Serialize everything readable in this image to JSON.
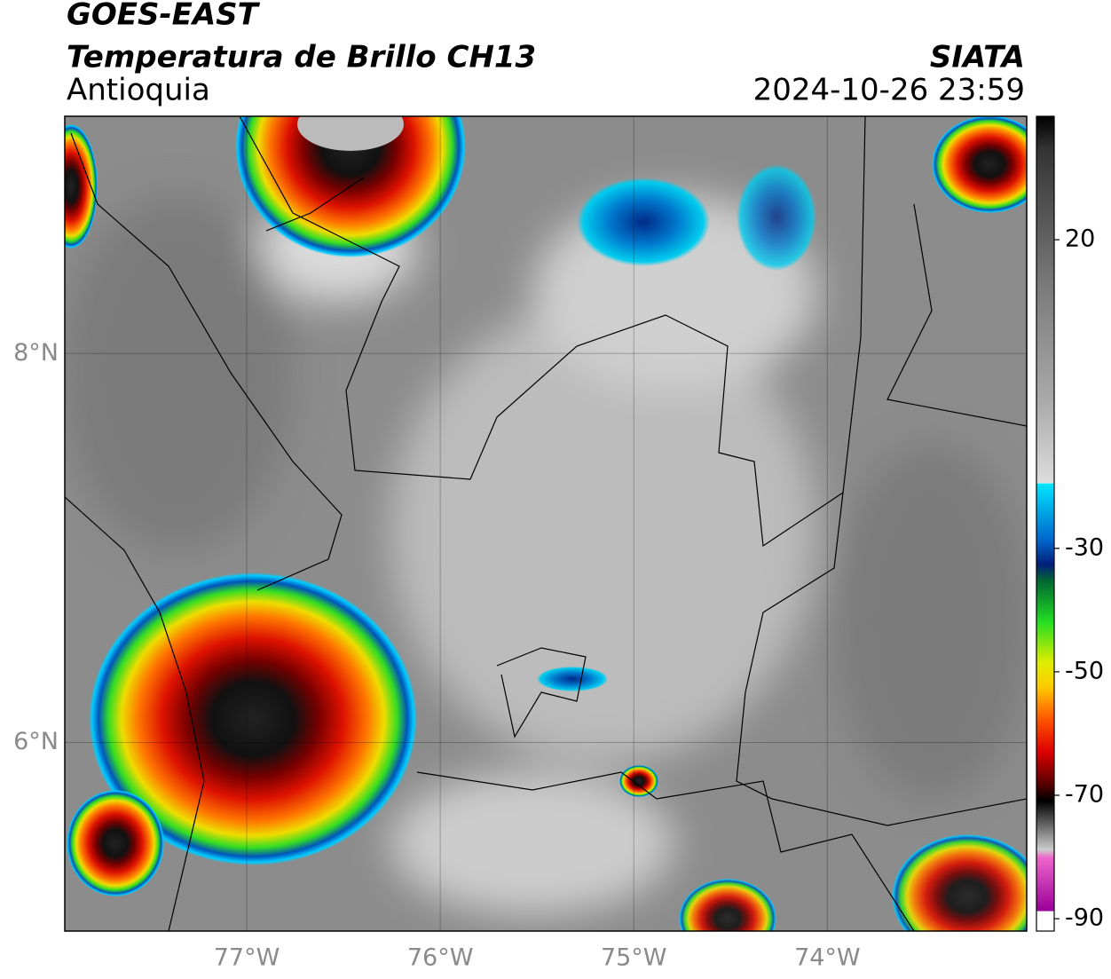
{
  "header": {
    "title": "GOES-EAST",
    "subtitle": "Temperatura de Brillo CH13",
    "region": "Antioquia",
    "source": "SIATA",
    "datetime": "2024-10-26 23:59"
  },
  "map": {
    "xlim": [
      -77.94,
      -72.97
    ],
    "ylim": [
      5.03,
      9.22
    ],
    "xticks": [
      {
        "value": -77,
        "label": "77°W"
      },
      {
        "value": -76,
        "label": "76°W"
      },
      {
        "value": -75,
        "label": "75°W"
      },
      {
        "value": -74,
        "label": "74°W"
      }
    ],
    "yticks": [
      {
        "value": 8,
        "label": "8°N"
      },
      {
        "value": 6,
        "label": "6°N"
      }
    ],
    "grid": true
  },
  "colorbar": {
    "ylim": [
      -92,
      40
    ],
    "ticks": [
      20,
      -30,
      -50,
      -70,
      -90
    ]
  }
}
